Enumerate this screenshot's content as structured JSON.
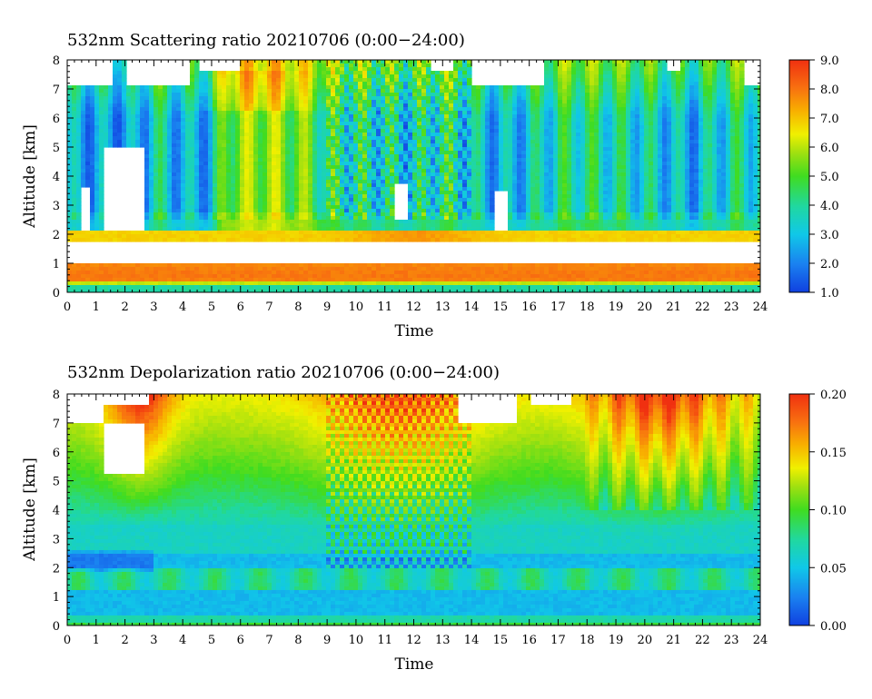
{
  "colors": [
    "#1040e0",
    "#1a80f0",
    "#10c8e8",
    "#20d8a0",
    "#40dc20",
    "#a0e010",
    "#f0f000",
    "#f8b000",
    "#f87010",
    "#f03010"
  ],
  "chart_data": [
    {
      "type": "heatmap",
      "title": "532nm Scattering ratio  20210706 (0:00−24:00)",
      "xlabel": "Time",
      "ylabel": "Altitude [km]",
      "xlim": [
        0,
        24
      ],
      "ylim": [
        0,
        8
      ],
      "x_ticks": [
        "0",
        "1",
        "2",
        "3",
        "4",
        "5",
        "6",
        "7",
        "8",
        "9",
        "10",
        "11",
        "12",
        "13",
        "14",
        "15",
        "16",
        "17",
        "18",
        "19",
        "20",
        "21",
        "22",
        "23",
        "24"
      ],
      "y_ticks": [
        "0",
        "1",
        "2",
        "3",
        "4",
        "5",
        "6",
        "7",
        "8"
      ],
      "colorbar": {
        "min": 1.0,
        "max": 9.0,
        "ticks": [
          "1.0",
          "2.0",
          "3.0",
          "4.0",
          "5.0",
          "6.0",
          "7.0",
          "8.0",
          "9.0"
        ]
      },
      "approx_structure": {
        "layers": [
          {
            "altitude_km": [
              0.0,
              0.3
            ],
            "value": 3.5
          },
          {
            "altitude_km": [
              0.3,
              0.9
            ],
            "value": 8.0
          },
          {
            "altitude_km": [
              1.0,
              1.7
            ],
            "value": "no data (gap)"
          },
          {
            "altitude_km": [
              1.7,
              2.2
            ],
            "value": 7.0
          }
        ],
        "columns": [
          {
            "time_h": [
              0,
              3
            ],
            "value_2_to_6km": 1.7
          },
          {
            "time_h": [
              5,
              9
            ],
            "value_2_to_6km": 5.2
          },
          {
            "time_h": [
              9,
              13
            ],
            "value_2_to_6km": 3.0
          },
          {
            "time_h": [
              13,
              16
            ],
            "value_2_to_6km": 2.0
          },
          {
            "time_h": [
              16,
              24
            ],
            "value_2_to_6km": 2.5
          }
        ]
      }
    },
    {
      "type": "heatmap",
      "title": "532nm Depolarization ratio  20210706 (0:00−24:00)",
      "xlabel": "Time",
      "ylabel": "Altitude [km]",
      "xlim": [
        0,
        24
      ],
      "ylim": [
        0,
        8
      ],
      "x_ticks": [
        "0",
        "1",
        "2",
        "3",
        "4",
        "5",
        "6",
        "7",
        "8",
        "9",
        "10",
        "11",
        "12",
        "13",
        "14",
        "15",
        "16",
        "17",
        "18",
        "19",
        "20",
        "21",
        "22",
        "23",
        "24"
      ],
      "y_ticks": [
        "0",
        "1",
        "2",
        "3",
        "4",
        "5",
        "6",
        "7",
        "8"
      ],
      "colorbar": {
        "min": 0.0,
        "max": 0.2,
        "ticks": [
          "0.00",
          "0.05",
          "0.10",
          "0.15",
          "0.20"
        ]
      },
      "approx_structure": {
        "layers": [
          {
            "altitude_km": [
              0.0,
              0.2
            ],
            "value": 0.08
          },
          {
            "altitude_km": [
              0.2,
              2.5
            ],
            "value": 0.04
          },
          {
            "altitude_km": [
              2.5,
              4.5
            ],
            "value": 0.06
          },
          {
            "altitude_km": [
              4.5,
              8.0
            ],
            "value": 0.13
          }
        ]
      }
    }
  ]
}
